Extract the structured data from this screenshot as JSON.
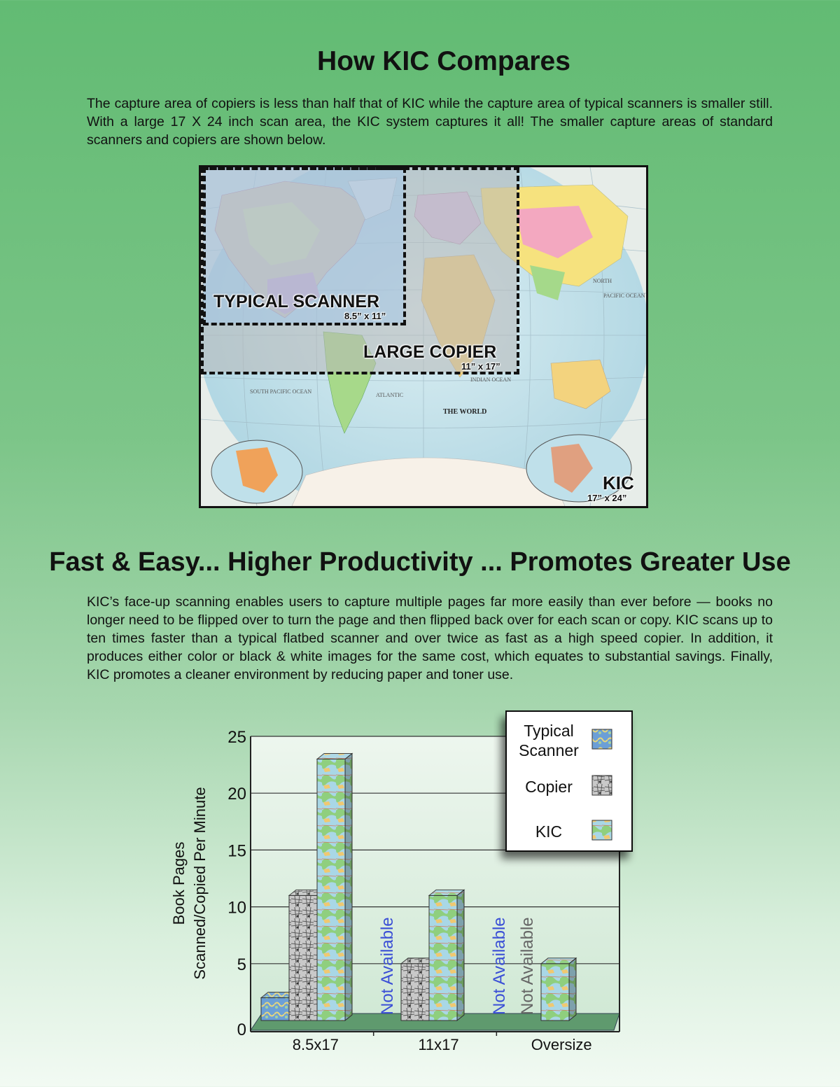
{
  "section1": {
    "title": "How KIC Compares",
    "body": "The capture area of copiers is less than half that of KIC while the capture area of typical scanners is smaller still.  With a large 17 X 24 inch scan area, the KIC system captures it all!  The smaller capture areas of standard scanners and copiers are shown below."
  },
  "map": {
    "scanner_label": "TYPICAL SCANNER",
    "scanner_dim": "8.5” x 11”",
    "copier_label": "LARGE COPIER",
    "copier_dim": "11” x 17”",
    "kic_label": "KIC",
    "kic_dim": "17” x 24”",
    "map_title": "THE WORLD",
    "ocean_labels": [
      "SOUTH PACIFIC OCEAN",
      "INDIAN OCEAN",
      "ATLANTIC",
      "NORTH",
      "PACIFIC OCEAN"
    ]
  },
  "section2": {
    "title": "Fast & Easy... Higher Productivity ... Promotes Greater Use",
    "body": "KIC’s face-up scanning enables users to capture multiple pages far more easily than ever before — books no longer need to be flipped over to turn the page and then flipped back over for each scan or copy.  KIC scans up to ten times faster than a typical flatbed scanner and over twice as fast as a high speed copier.  In addition, it produces either color or black & white images for the same cost, which equates to substantial savings.  Finally, KIC promotes a cleaner environment by reducing paper and toner use."
  },
  "chart_data": {
    "type": "bar",
    "categories": [
      "8.5x17",
      "11x17",
      "Oversize"
    ],
    "series": [
      {
        "name": "Typical Scanner",
        "values": [
          2,
          null,
          null
        ],
        "color": "#5b8fc9"
      },
      {
        "name": "Copier",
        "values": [
          11,
          5,
          null
        ],
        "color": "#9a9a9a"
      },
      {
        "name": "KIC",
        "values": [
          23,
          11,
          5
        ],
        "color": "#8fc1a0"
      }
    ],
    "legend_lines": [
      [
        "Typical",
        "Scanner"
      ],
      [
        "Copier"
      ],
      [
        "KIC"
      ]
    ],
    "not_available": [
      {
        "category": 1,
        "series": 0,
        "text": "Not Available",
        "color": "#3b4fd6"
      },
      {
        "category": 2,
        "series": 0,
        "text": "Not Available",
        "color": "#3b4fd6"
      },
      {
        "category": 2,
        "series": 1,
        "text": "Not Available",
        "color": "#666666"
      }
    ],
    "ylabel_lines": [
      "Book Pages",
      "Scanned/Copied Per Minute"
    ],
    "yticks": [
      0,
      5,
      10,
      15,
      20,
      25
    ],
    "ylim": [
      0,
      25
    ],
    "grid": true,
    "legend_position": "top-right"
  }
}
